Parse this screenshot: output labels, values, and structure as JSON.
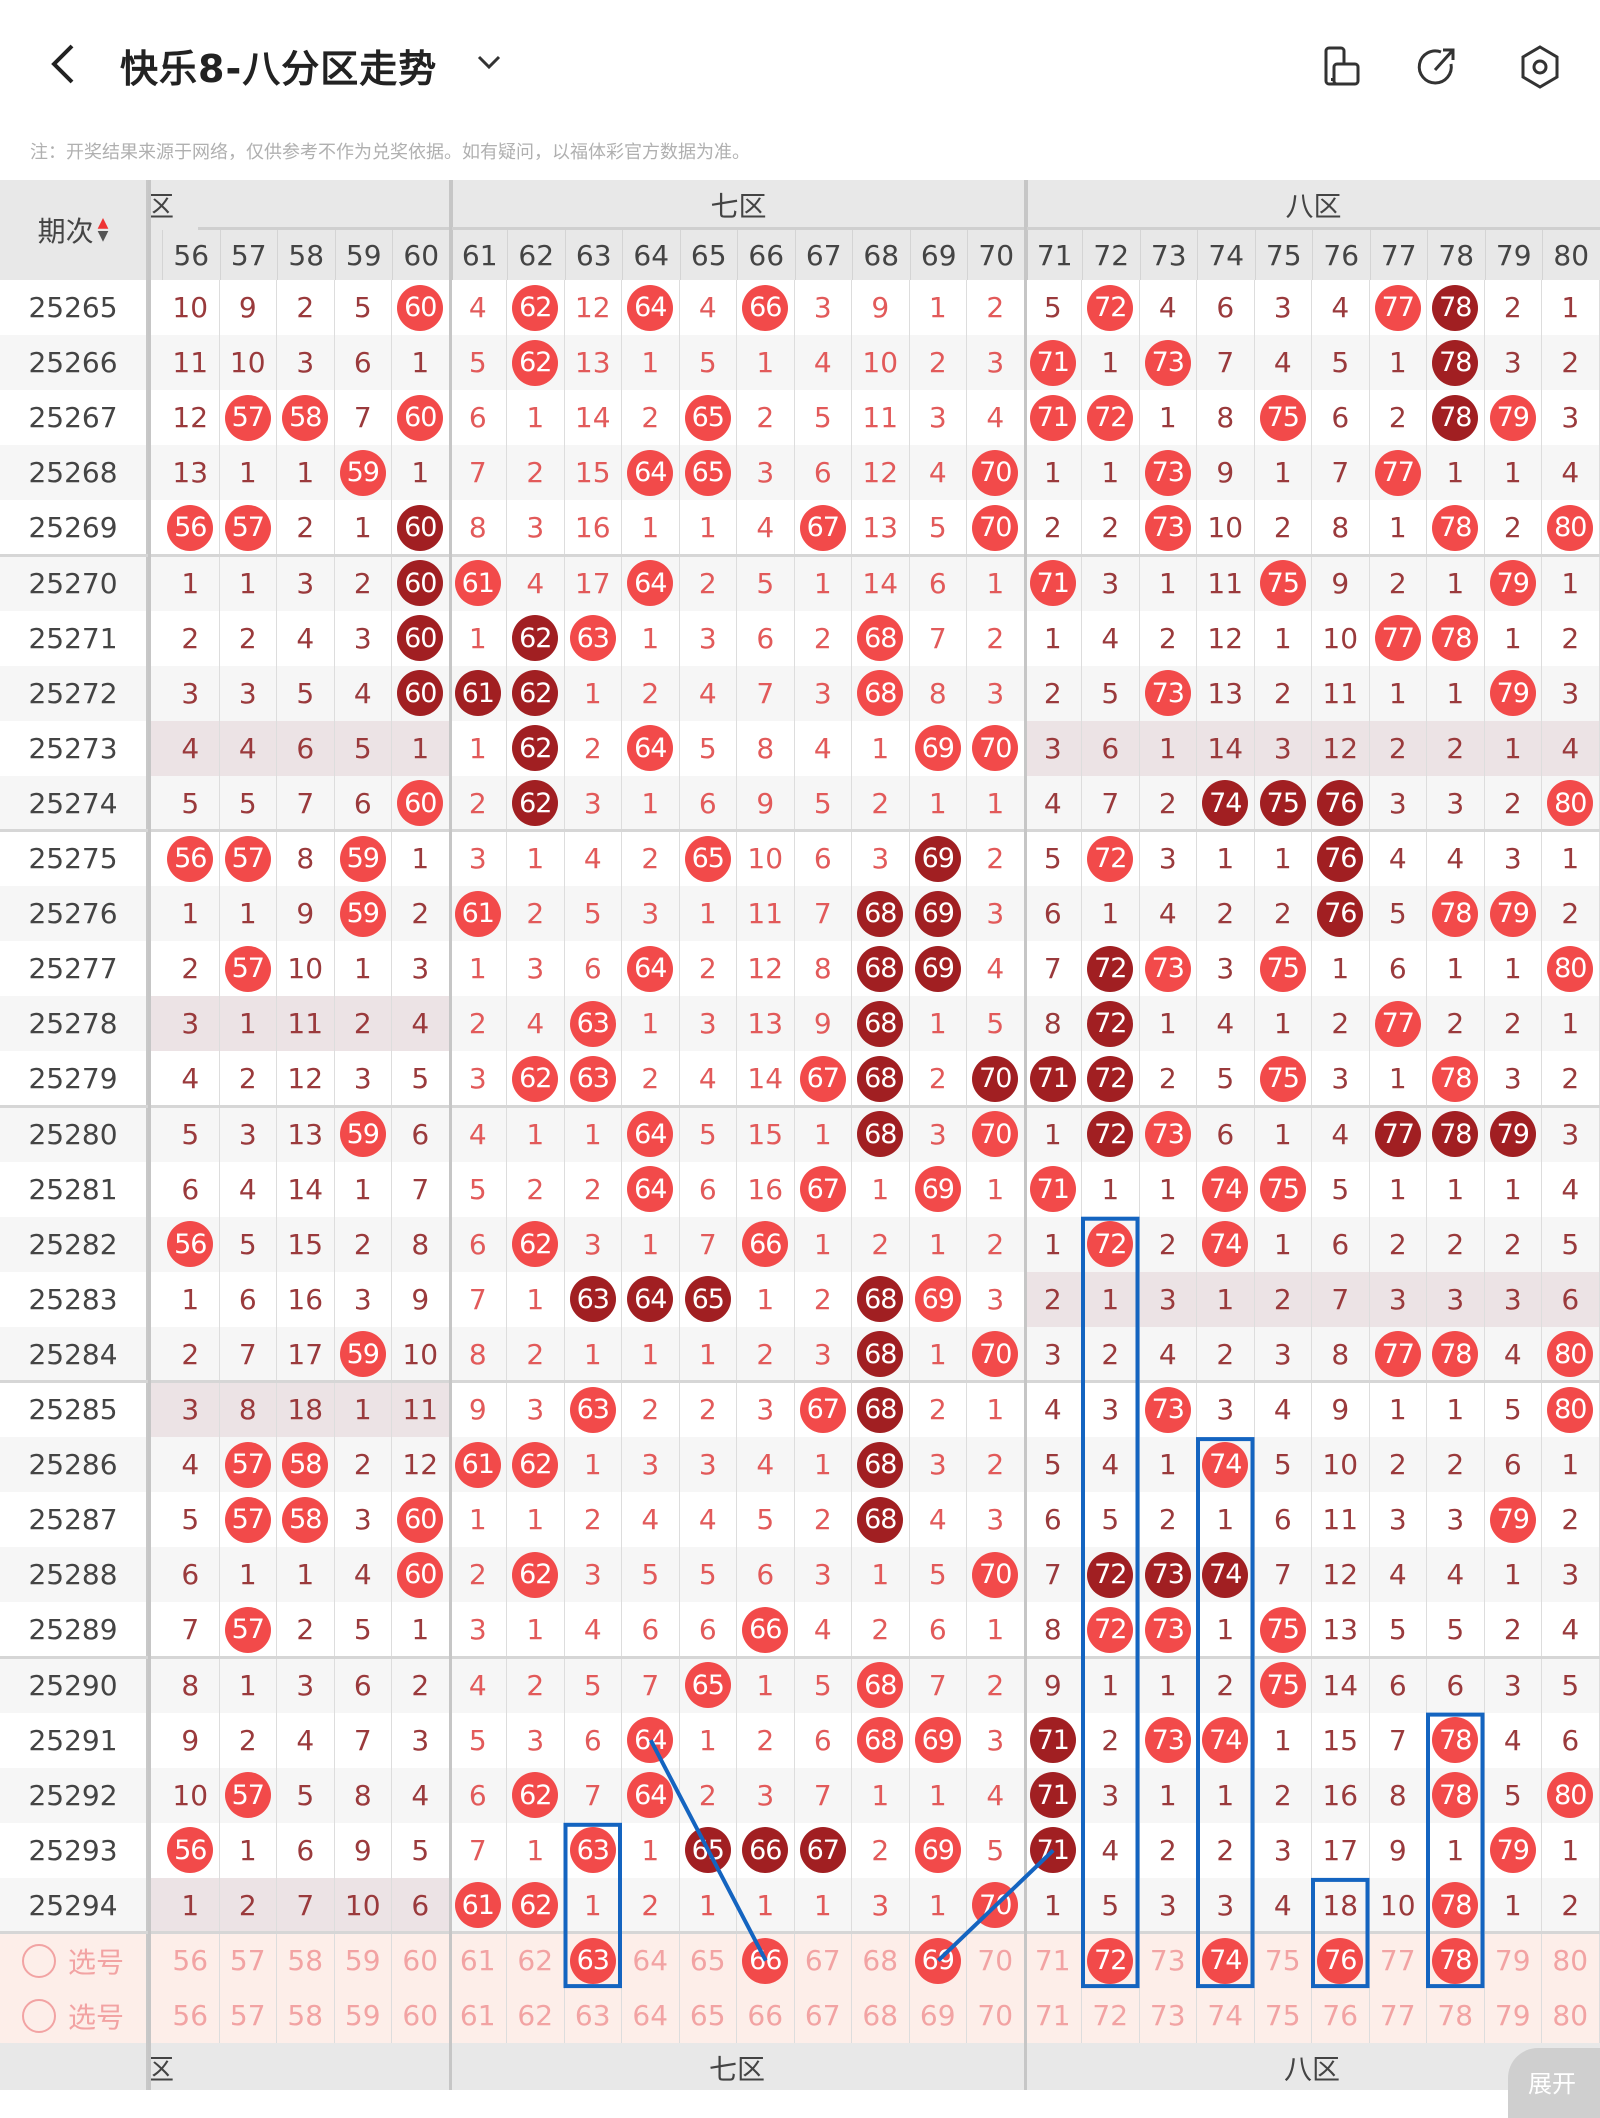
{
  "header": {
    "title": "快乐8-八分区走势",
    "note": "注：开奖结果来源于网络，仅供参考不作为兑奖依据。如有疑问，以福体彩官方数据为准。",
    "icons": [
      "back-arrow-icon",
      "chevron-down-icon",
      "device-rotate-icon",
      "share-icon",
      "settings-icon"
    ]
  },
  "colors": {
    "hit": "#f24a4a",
    "hit_repeat": "#a11f22",
    "text_dark": "#9a3a3c",
    "text_light": "#e25a5a",
    "empty_zone_bg": "#ece3e5",
    "select_bg": "#fdeee9",
    "select_text": "#f2a3a3",
    "annotation": "#1464c0"
  },
  "table": {
    "period_header": "期次",
    "zones": [
      {
        "label": "六区",
        "cols": [
          56,
          60
        ]
      },
      {
        "label": "七区",
        "cols": [
          61,
          70
        ]
      },
      {
        "label": "八区",
        "cols": [
          71,
          80
        ]
      }
    ],
    "columns": [
      "56",
      "57",
      "58",
      "59",
      "60",
      "61",
      "62",
      "63",
      "64",
      "65",
      "66",
      "67",
      "68",
      "69",
      "70",
      "71",
      "72",
      "73",
      "74",
      "75",
      "76",
      "77",
      "78",
      "79",
      "80"
    ],
    "rows": [
      {
        "period": "25265",
        "values": [
          10,
          9,
          2,
          5,
          60,
          4,
          62,
          12,
          64,
          4,
          66,
          3,
          9,
          1,
          2,
          5,
          72,
          4,
          6,
          3,
          4,
          77,
          78,
          2,
          1
        ],
        "dark": [
          78
        ],
        "empty_zones": []
      },
      {
        "period": "25266",
        "values": [
          11,
          10,
          3,
          6,
          1,
          5,
          62,
          13,
          1,
          5,
          1,
          4,
          10,
          2,
          3,
          71,
          1,
          73,
          7,
          4,
          5,
          1,
          78,
          3,
          2
        ],
        "dark": [
          78
        ],
        "empty_zones": []
      },
      {
        "period": "25267",
        "values": [
          12,
          57,
          58,
          7,
          60,
          6,
          1,
          14,
          2,
          65,
          2,
          5,
          11,
          3,
          4,
          71,
          72,
          1,
          8,
          75,
          6,
          2,
          78,
          79,
          3
        ],
        "dark": [
          78
        ],
        "empty_zones": []
      },
      {
        "period": "25268",
        "values": [
          13,
          1,
          1,
          59,
          1,
          7,
          2,
          15,
          64,
          65,
          3,
          6,
          12,
          4,
          70,
          1,
          1,
          73,
          9,
          1,
          7,
          77,
          1,
          1,
          4
        ],
        "dark": [],
        "empty_zones": []
      },
      {
        "period": "25269",
        "values": [
          56,
          57,
          2,
          1,
          60,
          8,
          3,
          16,
          1,
          1,
          4,
          67,
          13,
          5,
          70,
          2,
          2,
          73,
          10,
          2,
          8,
          1,
          78,
          2,
          80
        ],
        "dark": [
          60
        ],
        "empty_zones": []
      },
      {
        "period": "25270",
        "values": [
          1,
          1,
          3,
          2,
          60,
          61,
          4,
          17,
          64,
          2,
          5,
          1,
          14,
          6,
          1,
          71,
          3,
          1,
          11,
          75,
          9,
          2,
          1,
          79,
          1
        ],
        "dark": [
          60
        ],
        "empty_zones": []
      },
      {
        "period": "25271",
        "values": [
          2,
          2,
          4,
          3,
          60,
          1,
          62,
          63,
          1,
          3,
          6,
          2,
          68,
          7,
          2,
          1,
          4,
          2,
          12,
          1,
          10,
          77,
          78,
          1,
          2
        ],
        "dark": [
          60,
          62
        ],
        "empty_zones": []
      },
      {
        "period": "25272",
        "values": [
          3,
          3,
          5,
          4,
          60,
          61,
          62,
          1,
          2,
          4,
          7,
          3,
          68,
          8,
          3,
          2,
          5,
          73,
          13,
          2,
          11,
          1,
          1,
          79,
          3
        ],
        "dark": [
          60,
          61,
          62
        ],
        "empty_zones": []
      },
      {
        "period": "25273",
        "values": [
          4,
          4,
          6,
          5,
          1,
          1,
          62,
          2,
          64,
          5,
          8,
          4,
          1,
          69,
          70,
          3,
          6,
          1,
          14,
          3,
          12,
          2,
          2,
          1,
          4
        ],
        "dark": [
          62
        ],
        "empty_zones": [
          "六区",
          "八区"
        ]
      },
      {
        "period": "25274",
        "values": [
          5,
          5,
          7,
          6,
          60,
          2,
          62,
          3,
          1,
          6,
          9,
          5,
          2,
          1,
          1,
          4,
          7,
          2,
          74,
          75,
          76,
          3,
          3,
          2,
          80
        ],
        "dark": [
          62,
          74,
          75,
          76
        ],
        "empty_zones": []
      },
      {
        "period": "25275",
        "values": [
          56,
          57,
          8,
          59,
          1,
          3,
          1,
          4,
          2,
          65,
          10,
          6,
          3,
          69,
          2,
          5,
          72,
          3,
          1,
          1,
          76,
          4,
          4,
          3,
          1
        ],
        "dark": [
          69,
          76
        ],
        "empty_zones": []
      },
      {
        "period": "25276",
        "values": [
          1,
          1,
          9,
          59,
          2,
          61,
          2,
          5,
          3,
          1,
          11,
          7,
          68,
          69,
          3,
          6,
          1,
          4,
          2,
          2,
          76,
          5,
          78,
          79,
          2
        ],
        "dark": [
          68,
          69,
          76
        ],
        "empty_zones": []
      },
      {
        "period": "25277",
        "values": [
          2,
          57,
          10,
          1,
          3,
          1,
          3,
          6,
          64,
          2,
          12,
          8,
          68,
          69,
          4,
          7,
          72,
          73,
          3,
          75,
          1,
          6,
          1,
          1,
          80
        ],
        "dark": [
          68,
          69,
          72
        ],
        "empty_zones": []
      },
      {
        "period": "25278",
        "values": [
          3,
          1,
          11,
          2,
          4,
          2,
          4,
          63,
          1,
          3,
          13,
          9,
          68,
          1,
          5,
          8,
          72,
          1,
          4,
          1,
          2,
          77,
          2,
          2,
          1
        ],
        "dark": [
          68,
          72
        ],
        "empty_zones": [
          "六区"
        ]
      },
      {
        "period": "25279",
        "values": [
          4,
          2,
          12,
          3,
          5,
          3,
          62,
          63,
          2,
          4,
          14,
          67,
          68,
          2,
          70,
          71,
          72,
          2,
          5,
          75,
          3,
          1,
          78,
          3,
          2
        ],
        "dark": [
          68,
          70,
          71,
          72
        ],
        "empty_zones": []
      },
      {
        "period": "25280",
        "values": [
          5,
          3,
          13,
          59,
          6,
          4,
          1,
          1,
          64,
          5,
          15,
          1,
          68,
          3,
          70,
          1,
          72,
          73,
          6,
          1,
          4,
          77,
          78,
          79,
          3
        ],
        "dark": [
          68,
          72,
          77,
          78,
          79
        ],
        "empty_zones": []
      },
      {
        "period": "25281",
        "values": [
          6,
          4,
          14,
          1,
          7,
          5,
          2,
          2,
          64,
          6,
          16,
          67,
          1,
          69,
          1,
          71,
          1,
          1,
          74,
          75,
          5,
          1,
          1,
          1,
          4
        ],
        "dark": [],
        "empty_zones": []
      },
      {
        "period": "25282",
        "values": [
          56,
          5,
          15,
          2,
          8,
          6,
          62,
          3,
          1,
          7,
          66,
          1,
          2,
          1,
          2,
          1,
          72,
          2,
          74,
          1,
          6,
          2,
          2,
          2,
          5
        ],
        "dark": [],
        "empty_zones": []
      },
      {
        "period": "25283",
        "values": [
          1,
          6,
          16,
          3,
          9,
          7,
          1,
          63,
          64,
          65,
          1,
          2,
          68,
          69,
          3,
          2,
          1,
          3,
          1,
          2,
          7,
          3,
          3,
          3,
          6
        ],
        "dark": [
          63,
          64,
          65,
          68
        ],
        "empty_zones": [
          "八区"
        ]
      },
      {
        "period": "25284",
        "values": [
          2,
          7,
          17,
          59,
          10,
          8,
          2,
          1,
          1,
          1,
          2,
          3,
          68,
          1,
          70,
          3,
          2,
          4,
          2,
          3,
          8,
          77,
          78,
          4,
          80
        ],
        "dark": [
          68
        ],
        "empty_zones": []
      },
      {
        "period": "25285",
        "values": [
          3,
          8,
          18,
          1,
          11,
          9,
          3,
          63,
          2,
          2,
          3,
          67,
          68,
          2,
          1,
          4,
          3,
          73,
          3,
          4,
          9,
          1,
          1,
          5,
          80
        ],
        "dark": [
          68
        ],
        "empty_zones": [
          "六区"
        ]
      },
      {
        "period": "25286",
        "values": [
          4,
          57,
          58,
          2,
          12,
          61,
          62,
          1,
          3,
          3,
          4,
          1,
          68,
          3,
          2,
          5,
          4,
          1,
          74,
          5,
          10,
          2,
          2,
          6,
          1
        ],
        "dark": [
          68
        ],
        "empty_zones": []
      },
      {
        "period": "25287",
        "values": [
          5,
          57,
          58,
          3,
          60,
          1,
          1,
          2,
          4,
          4,
          5,
          2,
          68,
          4,
          3,
          6,
          5,
          2,
          1,
          6,
          11,
          3,
          3,
          79,
          2
        ],
        "dark": [
          68
        ],
        "empty_zones": []
      },
      {
        "period": "25288",
        "values": [
          6,
          1,
          1,
          4,
          60,
          2,
          62,
          3,
          5,
          5,
          6,
          3,
          1,
          5,
          70,
          7,
          72,
          73,
          74,
          7,
          12,
          4,
          4,
          1,
          3
        ],
        "dark": [
          72,
          73,
          74
        ],
        "empty_zones": []
      },
      {
        "period": "25289",
        "values": [
          7,
          57,
          2,
          5,
          1,
          3,
          1,
          4,
          6,
          6,
          66,
          4,
          2,
          6,
          1,
          8,
          72,
          73,
          1,
          75,
          13,
          5,
          5,
          2,
          4
        ],
        "dark": [],
        "empty_zones": []
      },
      {
        "period": "25290",
        "values": [
          8,
          1,
          3,
          6,
          2,
          4,
          2,
          5,
          7,
          65,
          1,
          5,
          68,
          7,
          2,
          9,
          1,
          1,
          2,
          75,
          14,
          6,
          6,
          3,
          5
        ],
        "dark": [],
        "empty_zones": []
      },
      {
        "period": "25291",
        "values": [
          9,
          2,
          4,
          7,
          3,
          5,
          3,
          6,
          64,
          1,
          2,
          6,
          68,
          69,
          3,
          71,
          2,
          73,
          74,
          1,
          15,
          7,
          78,
          4,
          6
        ],
        "dark": [
          71
        ],
        "empty_zones": []
      },
      {
        "period": "25292",
        "values": [
          10,
          57,
          5,
          8,
          4,
          6,
          62,
          7,
          64,
          2,
          3,
          7,
          1,
          1,
          4,
          71,
          3,
          1,
          1,
          2,
          16,
          8,
          78,
          5,
          80
        ],
        "dark": [
          71
        ],
        "empty_zones": []
      },
      {
        "period": "25293",
        "values": [
          56,
          1,
          6,
          9,
          5,
          7,
          1,
          63,
          1,
          65,
          66,
          67,
          2,
          69,
          5,
          71,
          4,
          2,
          2,
          3,
          17,
          9,
          1,
          79,
          1
        ],
        "dark": [
          65,
          66,
          67,
          71
        ],
        "empty_zones": []
      },
      {
        "period": "25294",
        "values": [
          1,
          2,
          7,
          10,
          6,
          61,
          62,
          1,
          2,
          1,
          1,
          1,
          3,
          1,
          70,
          1,
          5,
          3,
          3,
          4,
          18,
          10,
          78,
          1,
          2
        ],
        "dark": [],
        "empty_zones": [
          "六区"
        ]
      }
    ],
    "select_rows": [
      {
        "label": "选号",
        "selected": [
          63,
          66,
          69,
          72,
          74,
          76,
          78
        ]
      },
      {
        "label": "选号",
        "selected": []
      }
    ]
  },
  "annotations": {
    "boxes": [
      {
        "col": 63,
        "from": "25293",
        "to": "选号1"
      },
      {
        "col": 72,
        "from": "25282",
        "to": "选号1"
      },
      {
        "col": 74,
        "from": "25286",
        "to": "选号1"
      },
      {
        "col": 76,
        "from": "25294",
        "to": "选号1"
      },
      {
        "col": 78,
        "from": "25291",
        "to": "选号1"
      }
    ],
    "lines": [
      {
        "from": {
          "col": 64,
          "period": "25291"
        },
        "to": {
          "col": 66,
          "period": "选号1"
        }
      },
      {
        "from": {
          "col": 71,
          "period": "25293"
        },
        "to": {
          "col": 69,
          "period": "选号1"
        }
      }
    ]
  },
  "expand_label": "展开"
}
